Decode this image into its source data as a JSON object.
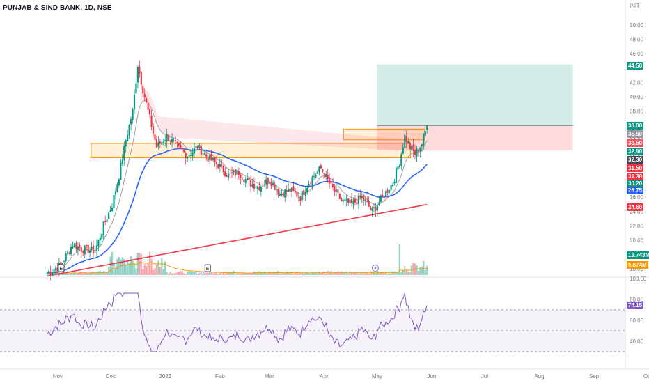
{
  "header": {
    "symbol": "PUNJAB & SIND BANK, 1D, NSE",
    "currency": "INR"
  },
  "price_axis": {
    "ticks": [
      "50.00",
      "48.00",
      "46.00",
      "44.00",
      "42.00",
      "40.00",
      "38.00",
      "36.00",
      "34.00",
      "32.00",
      "30.00",
      "28.00",
      "26.00",
      "24.00",
      "22.00",
      "20.00",
      "18.00",
      "16.00"
    ]
  },
  "rsi_axis": {
    "ticks": [
      "100.00",
      "80.00",
      "60.00",
      "40.00"
    ]
  },
  "time_axis": {
    "labels": [
      "Nov",
      "Dec",
      "2023",
      "Feb",
      "Mar",
      "Apr",
      "May",
      "Jun",
      "Jul",
      "Aug",
      "Sep",
      "Oc"
    ]
  },
  "price_labels": [
    {
      "text": "44.50",
      "color": "#089981"
    },
    {
      "text": "36.00",
      "color": "#089981"
    },
    {
      "text": "35.50",
      "color": "#9598a1"
    },
    {
      "text": "33.50",
      "color": "#f7525f"
    },
    {
      "text": "32.90",
      "color": "#089981"
    },
    {
      "text": "32.30",
      "color": "#434651"
    },
    {
      "text": "31.50",
      "color": "#f23645"
    },
    {
      "text": "31.30",
      "color": "#f23645"
    },
    {
      "text": "30.20",
      "color": "#089981"
    },
    {
      "text": "28.75",
      "color": "#2962ff"
    },
    {
      "text": "24.60",
      "color": "#f23645"
    },
    {
      "text": "13.743M",
      "color": "#089981"
    },
    {
      "text": "5.874M",
      "color": "#ff9800"
    },
    {
      "text": "74.15",
      "color": "#7e57c2"
    }
  ],
  "earnings_markers": [
    "E",
    "E"
  ],
  "colors": {
    "up": "#089981",
    "down": "#f23645",
    "ema_fast": "#2962ff",
    "ema_slow": "#f23645",
    "ribbon": "#9e9e9e",
    "rsi": "#7e57c2",
    "target": "#089981",
    "stop": "#f23645",
    "zone": "#ff9800"
  },
  "chart_data": [
    {
      "type": "candlestick",
      "title": "PUNJAB & SIND BANK, 1D, NSE",
      "ylim": [
        15.5,
        52
      ],
      "x_range": [
        "2022-10-20",
        "2023-10-05"
      ],
      "ohlc_monthly_summary": [
        {
          "period": "Nov 2022",
          "open": 15.3,
          "high": 20.0,
          "low": 15.3,
          "close": 19.2
        },
        {
          "period": "Dec 2022",
          "open": 19.2,
          "high": 44.9,
          "low": 19.0,
          "close": 34.5
        },
        {
          "period": "Jan 2023",
          "open": 34.5,
          "high": 35.3,
          "low": 31.3,
          "close": 31.4
        },
        {
          "period": "Feb 2023",
          "open": 31.4,
          "high": 31.9,
          "low": 27.6,
          "close": 28.2
        },
        {
          "period": "Mar 2023",
          "open": 28.2,
          "high": 30.8,
          "low": 23.9,
          "close": 25.4
        },
        {
          "period": "Apr 2023",
          "open": 25.4,
          "high": 34.9,
          "low": 23.9,
          "close": 33.4
        },
        {
          "period": "May 2023 (latest)",
          "open": 33.5,
          "high": 36.3,
          "low": 33.4,
          "close": 36.0
        }
      ],
      "series": [
        {
          "name": "EMA fast",
          "color": "#2962ff",
          "last": 28.75
        },
        {
          "name": "EMA slow",
          "color": "#f23645",
          "last": 24.6
        },
        {
          "name": "Ribbon",
          "color": "#9e9e9e",
          "last": 32.3
        }
      ],
      "long_position": {
        "entry": 36.0,
        "target": 44.5,
        "stop": 32.5,
        "x_start": "2023-05-01",
        "x_end": "2023-08-20"
      },
      "zones": [
        {
          "price_low": 31.5,
          "price_high": 33.5,
          "x_start": "2022-11-20",
          "x_end": "2023-05-20"
        },
        {
          "price_low": 34.0,
          "price_high": 35.5,
          "x_start": "2023-04-12",
          "x_end": "2023-05-28"
        }
      ],
      "volume": {
        "last": 13.743,
        "ma_last": 5.874,
        "unit": "M"
      }
    },
    {
      "type": "line",
      "title": "RSI",
      "ylim": [
        20,
        100
      ],
      "bands": [
        30,
        70
      ],
      "last": 74.15
    }
  ]
}
